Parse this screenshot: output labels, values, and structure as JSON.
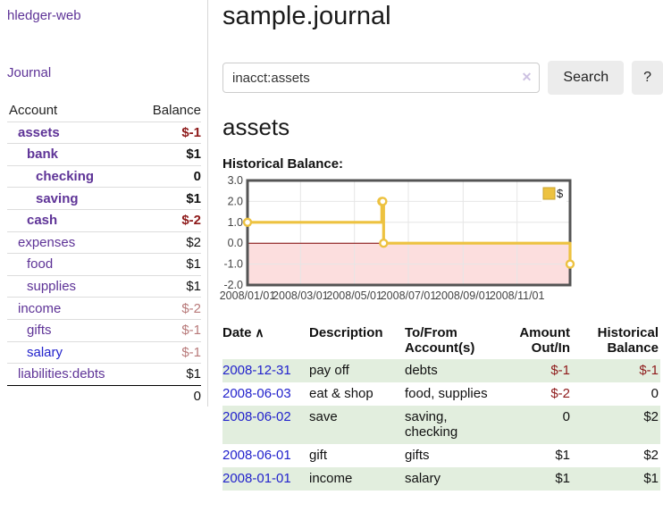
{
  "colors": {
    "purple_link": "#5e3397",
    "blue_link": "#2222cc",
    "neg_strong": "#8e1a1a",
    "neg_soft": "#b87a7a",
    "row_green": "#e2eede",
    "series_yellow": "#edc240",
    "negative_area_pink": "#fcdede",
    "zero_line_red": "#800000",
    "grid_line": "#e6e6e6",
    "chart_border": "#545454"
  },
  "sidebar": {
    "brand": "hledger-web",
    "nav_journal": "Journal",
    "accounts_table": {
      "headers": {
        "account": "Account",
        "balance": "Balance"
      },
      "rows": [
        {
          "name": "assets",
          "depth": 1,
          "bold": true,
          "balance": "$-1",
          "balance_style": "neg-strong"
        },
        {
          "name": "bank",
          "depth": 2,
          "bold": true,
          "balance": "$1",
          "balance_style": "pos"
        },
        {
          "name": "checking",
          "depth": 3,
          "bold": true,
          "balance": "0",
          "balance_style": "pos"
        },
        {
          "name": "saving",
          "depth": 3,
          "bold": true,
          "balance": "$1",
          "balance_style": "pos"
        },
        {
          "name": "cash",
          "depth": 2,
          "bold": true,
          "balance": "$-2",
          "balance_style": "neg-strong"
        },
        {
          "name": "expenses",
          "depth": 1,
          "bold": false,
          "balance": "$2",
          "balance_style": "pos"
        },
        {
          "name": "food",
          "depth": 2,
          "bold": false,
          "balance": "$1",
          "balance_style": "pos"
        },
        {
          "name": "supplies",
          "depth": 2,
          "bold": false,
          "balance": "$1",
          "balance_style": "pos"
        },
        {
          "name": "income",
          "depth": 1,
          "bold": false,
          "balance": "$-2",
          "balance_style": "neg-soft"
        },
        {
          "name": "gifts",
          "depth": 2,
          "bold": false,
          "balance": "$-1",
          "balance_style": "neg-soft"
        },
        {
          "name": "salary",
          "depth": 2,
          "bold": false,
          "link_color": "blue",
          "balance": "$-1",
          "balance_style": "neg-soft"
        },
        {
          "name": "liabilities:debts",
          "depth": 1,
          "bold": false,
          "balance": "$1",
          "balance_style": "pos"
        }
      ],
      "total": "0"
    }
  },
  "header": {
    "title": "sample.journal"
  },
  "search": {
    "value": "inacct:assets",
    "clear_icon": "✕",
    "button_label": "Search",
    "help_label": "?"
  },
  "account_page": {
    "heading": "assets",
    "chart_label": "Historical Balance:"
  },
  "chart_data": {
    "type": "line",
    "title": "Historical Balance",
    "step": true,
    "legend": [
      {
        "label": "$",
        "color": "#edc240"
      }
    ],
    "legend_position": "top-right",
    "grid": true,
    "xlim_days": [
      0,
      365
    ],
    "ylim": [
      -2,
      3
    ],
    "series": [
      {
        "name": "$",
        "points": [
          {
            "date": "2008/01/01",
            "day": 0,
            "value": 1
          },
          {
            "date": "2008/06/01",
            "day": 152,
            "value": 2
          },
          {
            "date": "2008/06/02",
            "day": 153,
            "value": 2
          },
          {
            "date": "2008/06/03",
            "day": 154,
            "value": 0
          },
          {
            "date": "2008/12/31",
            "day": 365,
            "value": -1
          }
        ]
      }
    ],
    "x_ticks": [
      {
        "day": 0,
        "label": "2008/01/01"
      },
      {
        "day": 60,
        "label": "2008/03/01"
      },
      {
        "day": 121,
        "label": "2008/05/01"
      },
      {
        "day": 182,
        "label": "2008/07/01"
      },
      {
        "day": 244,
        "label": "2008/09/01"
      },
      {
        "day": 305,
        "label": "2008/11/01"
      }
    ],
    "y_ticks": [
      {
        "v": 3,
        "label": "3.0"
      },
      {
        "v": 2,
        "label": "2.0"
      },
      {
        "v": 1,
        "label": "1.0"
      },
      {
        "v": 0,
        "label": "0.0"
      },
      {
        "v": -1,
        "label": "-1.0"
      },
      {
        "v": -2,
        "label": "-2.0"
      }
    ],
    "negative_region_filled": true
  },
  "register": {
    "headers": [
      {
        "label": "Date",
        "sort_icon": "∧",
        "align": "left"
      },
      {
        "label": "Description",
        "align": "left"
      },
      {
        "label": "To/From Account(s)",
        "align": "left"
      },
      {
        "label": "Amount Out/In",
        "align": "right"
      },
      {
        "label": "Historical Balance",
        "align": "right"
      }
    ],
    "rows": [
      {
        "date": "2008-12-31",
        "description": "pay off",
        "accounts": "debts",
        "amount": "$-1",
        "amount_neg": true,
        "balance": "$-1",
        "balance_neg": true,
        "green": true
      },
      {
        "date": "2008-06-03",
        "description": "eat & shop",
        "accounts": "food, supplies",
        "amount": "$-2",
        "amount_neg": true,
        "balance": "0",
        "balance_neg": false,
        "green": false
      },
      {
        "date": "2008-06-02",
        "description": "save",
        "accounts": "saving, checking",
        "amount": "0",
        "amount_neg": false,
        "balance": "$2",
        "balance_neg": false,
        "green": true
      },
      {
        "date": "2008-06-01",
        "description": "gift",
        "accounts": "gifts",
        "amount": "$1",
        "amount_neg": false,
        "balance": "$2",
        "balance_neg": false,
        "green": false
      },
      {
        "date": "2008-01-01",
        "description": "income",
        "accounts": "salary",
        "amount": "$1",
        "amount_neg": false,
        "balance": "$1",
        "balance_neg": false,
        "green": true
      }
    ]
  }
}
